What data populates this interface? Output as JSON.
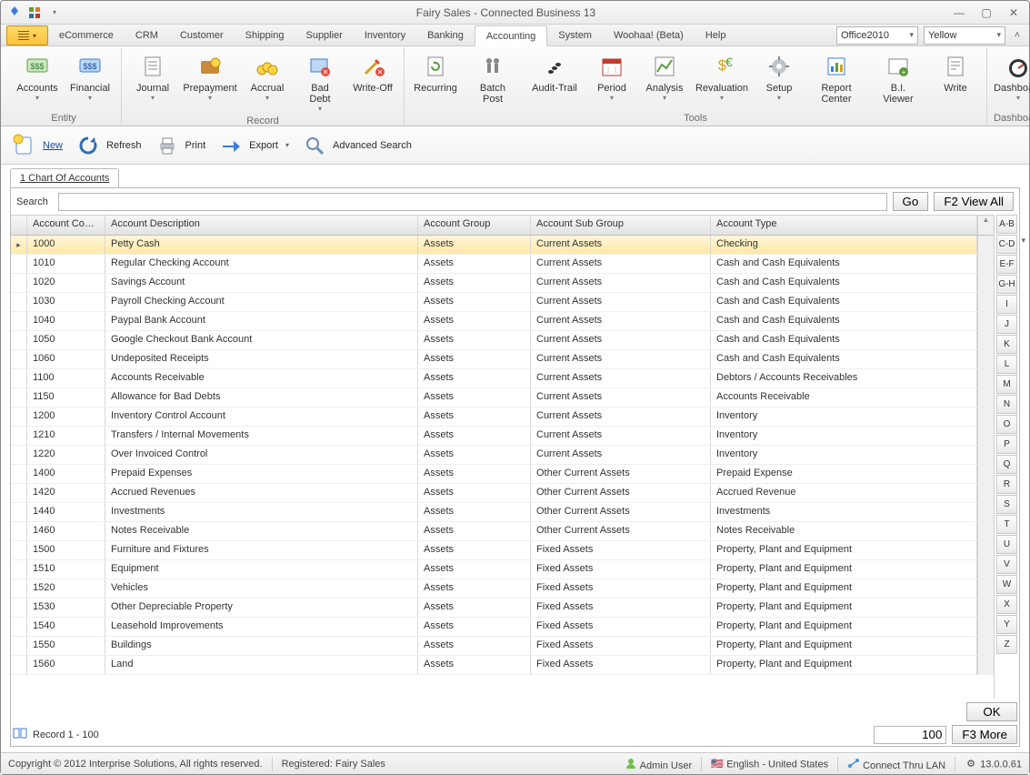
{
  "window": {
    "title": "Fairy Sales - Connected Business 13"
  },
  "menu": {
    "items": [
      "eCommerce",
      "CRM",
      "Customer",
      "Shipping",
      "Supplier",
      "Inventory",
      "Banking",
      "Accounting",
      "System",
      "Woohaa! (Beta)",
      "Help"
    ],
    "active": "Accounting",
    "themeCombo": "Office2010",
    "colorCombo": "Yellow"
  },
  "ribbon": {
    "groups": [
      {
        "label": "Entity",
        "buttons": [
          {
            "label": "Accounts",
            "drop": true
          },
          {
            "label": "Financial",
            "drop": true
          }
        ]
      },
      {
        "label": "Record",
        "buttons": [
          {
            "label": "Journal",
            "drop": true
          },
          {
            "label": "Prepayment",
            "drop": true
          },
          {
            "label": "Accrual",
            "drop": true
          },
          {
            "label": "Bad Debt",
            "drop": true
          },
          {
            "label": "Write-Off"
          }
        ]
      },
      {
        "label": "Tools",
        "buttons": [
          {
            "label": "Recurring"
          },
          {
            "label": "Batch Post"
          },
          {
            "label": "Audit-Trail"
          },
          {
            "label": "Period",
            "drop": true
          },
          {
            "label": "Analysis",
            "drop": true
          },
          {
            "label": "Revaluation",
            "drop": true
          },
          {
            "label": "Setup",
            "drop": true
          },
          {
            "label": "Report Center"
          },
          {
            "label": "B.I. Viewer"
          },
          {
            "label": "Write"
          }
        ]
      },
      {
        "label": "Dashboard",
        "buttons": [
          {
            "label": "Dashboard",
            "drop": true
          }
        ]
      }
    ]
  },
  "toolbar": {
    "new": "New",
    "refresh": "Refresh",
    "print": "Print",
    "export": "Export",
    "advanced": "Advanced Search"
  },
  "tab": {
    "label": "1 Chart Of Accounts"
  },
  "search": {
    "label": "Search",
    "go": "Go",
    "viewall": "F2 View All"
  },
  "grid": {
    "columns": [
      "Account Code",
      "Account Description",
      "Account Group",
      "Account Sub Group",
      "Account Type"
    ],
    "rows": [
      [
        "1000",
        "Petty Cash",
        "Assets",
        "Current Assets",
        "Checking"
      ],
      [
        "1010",
        "Regular Checking Account",
        "Assets",
        "Current Assets",
        "Cash and Cash Equivalents"
      ],
      [
        "1020",
        "Savings Account",
        "Assets",
        "Current Assets",
        "Cash and Cash Equivalents"
      ],
      [
        "1030",
        "Payroll Checking Account",
        "Assets",
        "Current Assets",
        "Cash and Cash Equivalents"
      ],
      [
        "1040",
        "Paypal Bank Account",
        "Assets",
        "Current Assets",
        "Cash and Cash Equivalents"
      ],
      [
        "1050",
        "Google Checkout Bank Account",
        "Assets",
        "Current Assets",
        "Cash and Cash Equivalents"
      ],
      [
        "1060",
        "Undeposited Receipts",
        "Assets",
        "Current Assets",
        "Cash and Cash Equivalents"
      ],
      [
        "1100",
        "Accounts Receivable",
        "Assets",
        "Current Assets",
        "Debtors / Accounts Receivables"
      ],
      [
        "1150",
        "Allowance for Bad Debts",
        "Assets",
        "Current Assets",
        "Accounts Receivable"
      ],
      [
        "1200",
        "Inventory Control Account",
        "Assets",
        "Current Assets",
        "Inventory"
      ],
      [
        "1210",
        "Transfers / Internal Movements",
        "Assets",
        "Current Assets",
        "Inventory"
      ],
      [
        "1220",
        "Over Invoiced Control",
        "Assets",
        "Current Assets",
        "Inventory"
      ],
      [
        "1400",
        "Prepaid Expenses",
        "Assets",
        "Other Current Assets",
        "Prepaid Expense"
      ],
      [
        "1420",
        "Accrued Revenues",
        "Assets",
        "Other Current Assets",
        "Accrued Revenue"
      ],
      [
        "1440",
        "Investments",
        "Assets",
        "Other Current Assets",
        "Investments"
      ],
      [
        "1460",
        "Notes Receivable",
        "Assets",
        "Other Current Assets",
        "Notes Receivable"
      ],
      [
        "1500",
        "Furniture and Fixtures",
        "Assets",
        "Fixed Assets",
        "Property, Plant and Equipment"
      ],
      [
        "1510",
        "Equipment",
        "Assets",
        "Fixed Assets",
        "Property, Plant and Equipment"
      ],
      [
        "1520",
        "Vehicles",
        "Assets",
        "Fixed Assets",
        "Property, Plant and Equipment"
      ],
      [
        "1530",
        "Other Depreciable Property",
        "Assets",
        "Fixed Assets",
        "Property, Plant and Equipment"
      ],
      [
        "1540",
        "Leasehold Improvements",
        "Assets",
        "Fixed Assets",
        "Property, Plant and Equipment"
      ],
      [
        "1550",
        "Buildings",
        "Assets",
        "Fixed Assets",
        "Property, Plant and Equipment"
      ],
      [
        "1560",
        "Land",
        "Assets",
        "Fixed Assets",
        "Property, Plant and Equipment"
      ]
    ]
  },
  "alpha": [
    "A-B",
    "C-D",
    "E-F",
    "G-H",
    "I",
    "J",
    "K",
    "L",
    "M",
    "N",
    "O",
    "P",
    "Q",
    "R",
    "S",
    "T",
    "U",
    "V",
    "W",
    "X",
    "Y",
    "Z"
  ],
  "footer": {
    "ok": "OK",
    "record": "Record 1 - 100",
    "pageSize": "100",
    "more": "F3 More"
  },
  "status": {
    "copyright": "Copyright © 2012 Interprise Solutions, All rights reserved.",
    "registered": "Registered: Fairy Sales",
    "user": "Admin User",
    "locale": "English - United States",
    "conn": "Connect Thru LAN",
    "version": "13.0.0.61"
  }
}
